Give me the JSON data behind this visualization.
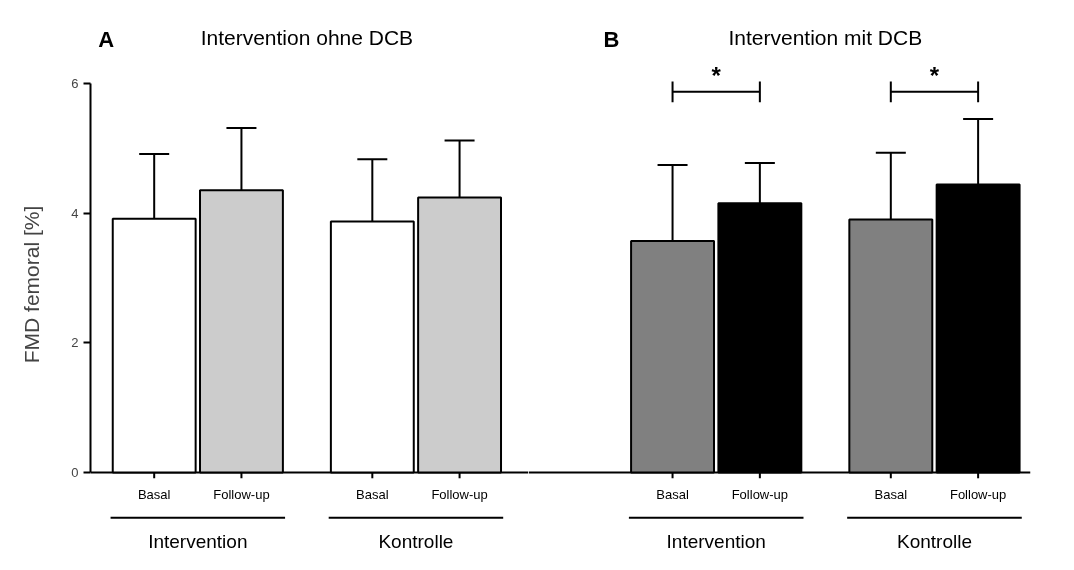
{
  "chart_data": [
    {
      "type": "bar",
      "title": "Intervention ohne DCB",
      "ylabel": "FMD femoral [%]",
      "categories": [
        "Basal",
        "Follow-up",
        "Basal",
        "Follow-up"
      ],
      "values": [
        3.91,
        4.35,
        3.87,
        4.24
      ],
      "colors": [
        "#ffffff",
        "#cccccc",
        "#ffffff",
        "#cccccc"
      ],
      "errors": [
        [
          3.91,
          4.91
        ],
        [
          4.35,
          5.31
        ],
        [
          3.87,
          4.83
        ],
        [
          4.24,
          5.12
        ]
      ],
      "ylim": [
        0,
        6
      ],
      "yticks": [
        0,
        2,
        4,
        6
      ],
      "annotations": [
        "A",
        "Intervention",
        "Kontrolle"
      ]
    },
    {
      "type": "bar",
      "title": "Intervention mit DCB",
      "categories": [
        "Basal",
        "Follow-up",
        "Basal",
        "Follow-up"
      ],
      "values": [
        3.57,
        4.15,
        3.9,
        4.44
      ],
      "colors": [
        "#808080",
        "#000000",
        "#808080",
        "#000000"
      ],
      "errors": [
        [
          3.57,
          4.74
        ],
        [
          4.15,
          4.77
        ],
        [
          3.9,
          4.93
        ],
        [
          4.44,
          5.45
        ]
      ],
      "ylim": [
        0,
        6
      ],
      "yticks": [
        0,
        2,
        4,
        6
      ],
      "tick_labels": "x",
      "annotations": [
        "B",
        "Intervention",
        "Kontrolle",
        "*",
        "*"
      ]
    }
  ]
}
